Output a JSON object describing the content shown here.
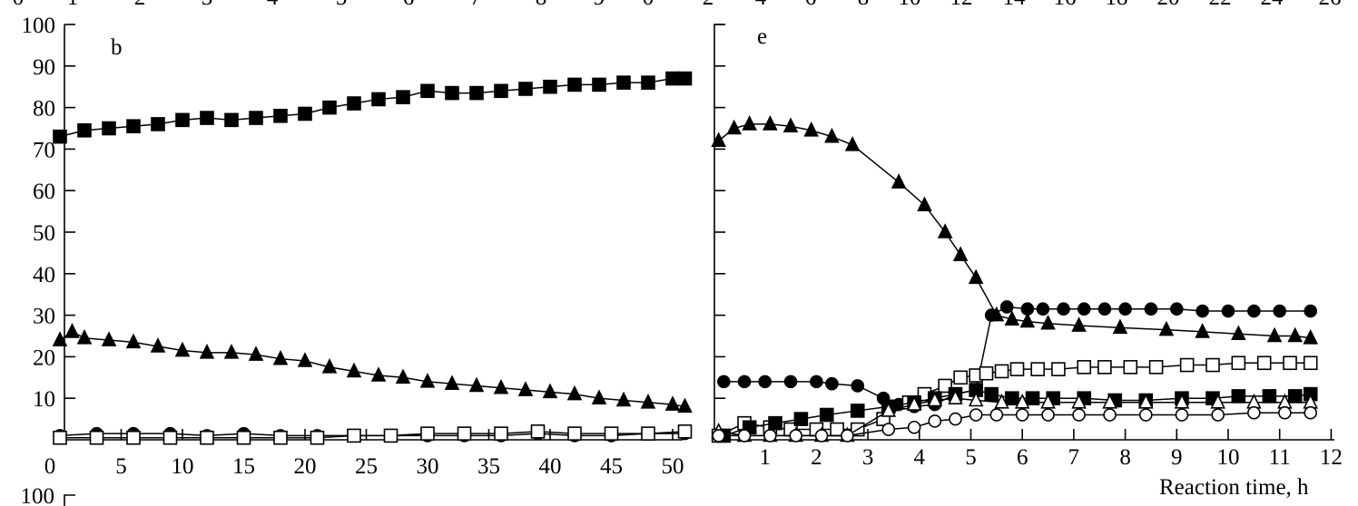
{
  "top_strip_ticks": [
    "0",
    "1",
    "2",
    "3",
    "4",
    "5",
    "6",
    "7",
    "8",
    "9",
    "0",
    "2",
    "4",
    "6",
    "8",
    "10",
    "12",
    "14",
    "16",
    "18",
    "20",
    "22",
    "24",
    "26"
  ],
  "next_panel_tick": "100",
  "chart_data": [
    {
      "panel": "b",
      "type": "line",
      "xlim": [
        0,
        53
      ],
      "ylim": [
        0,
        100
      ],
      "x_ticks": [
        0,
        5,
        10,
        15,
        20,
        25,
        30,
        35,
        40,
        45,
        50
      ],
      "y_ticks": [
        10,
        20,
        30,
        40,
        50,
        60,
        70,
        80,
        90,
        100
      ],
      "series": [
        {
          "marker": "filled-square",
          "x": [
            0,
            2,
            4,
            6,
            8,
            10,
            12,
            14,
            16,
            18,
            20,
            22,
            24,
            26,
            28,
            30,
            32,
            34,
            36,
            38,
            40,
            42,
            44,
            46,
            48,
            50,
            51
          ],
          "y": [
            73,
            74.5,
            75,
            75.5,
            76,
            77,
            77.5,
            77,
            77.5,
            78,
            78.5,
            80,
            81,
            82,
            82.5,
            84,
            83.5,
            83.5,
            84,
            84.5,
            85,
            85.5,
            85.5,
            86,
            86,
            87,
            87
          ]
        },
        {
          "marker": "filled-triangle",
          "x": [
            0,
            1,
            2,
            4,
            6,
            8,
            10,
            12,
            14,
            16,
            18,
            20,
            22,
            24,
            26,
            28,
            30,
            32,
            34,
            36,
            38,
            40,
            42,
            44,
            46,
            48,
            50,
            51
          ],
          "y": [
            24,
            26,
            24.5,
            24,
            23.5,
            22.5,
            21.5,
            21,
            21,
            20.5,
            19.5,
            19,
            17.5,
            16.5,
            15.5,
            15,
            14,
            13.5,
            13,
            12.5,
            12,
            11.5,
            11,
            10,
            9.5,
            9,
            8.5,
            8
          ]
        },
        {
          "marker": "filled-circle",
          "x": [
            0,
            3,
            6,
            9,
            12,
            15,
            18,
            21,
            24,
            27,
            30,
            33,
            36,
            39,
            42,
            45,
            48,
            51
          ],
          "y": [
            1,
            1.5,
            1.5,
            1.5,
            1,
            1.5,
            1,
            1,
            1,
            1,
            1,
            1,
            1,
            1.5,
            1,
            1,
            1.5,
            1.5
          ]
        },
        {
          "marker": "open-square",
          "x": [
            0,
            3,
            6,
            9,
            12,
            15,
            18,
            21,
            24,
            27,
            30,
            33,
            36,
            39,
            42,
            45,
            48,
            51
          ],
          "y": [
            0.5,
            0.5,
            0.5,
            0.5,
            0.5,
            0.5,
            0.5,
            0.5,
            1,
            1,
            1.5,
            1.5,
            1.5,
            2,
            1.5,
            1.5,
            1.5,
            2
          ]
        }
      ]
    },
    {
      "panel": "e",
      "type": "line",
      "xlabel": "Reaction time, h",
      "xlim": [
        0,
        12
      ],
      "ylim": [
        0,
        100
      ],
      "x_ticks": [
        1,
        2,
        3,
        4,
        5,
        6,
        7,
        8,
        9,
        10,
        11,
        12
      ],
      "y_ticks": [
        10,
        20,
        30,
        40,
        50,
        60,
        70,
        80,
        90,
        100
      ],
      "series": [
        {
          "marker": "filled-triangle",
          "x": [
            0.1,
            0.4,
            0.7,
            1.1,
            1.5,
            1.9,
            2.3,
            2.7,
            3.6,
            4.1,
            4.5,
            4.8,
            5.1,
            5.5,
            5.8,
            6.1,
            6.5,
            7.1,
            7.9,
            8.8,
            9.5,
            10.2,
            10.9,
            11.3,
            11.6
          ],
          "y": [
            72,
            75,
            76,
            76,
            75.5,
            74.5,
            73,
            71,
            62,
            56.5,
            50,
            44.5,
            39,
            30,
            29,
            28.5,
            28,
            27.5,
            27,
            26.5,
            26,
            25.5,
            25,
            25,
            24.5
          ]
        },
        {
          "marker": "filled-circle",
          "x": [
            0.2,
            0.6,
            1.0,
            1.5,
            2.0,
            2.3,
            2.8,
            3.3,
            3.6,
            3.9,
            4.3,
            4.7,
            5.1,
            5.4,
            5.7,
            6.1,
            6.4,
            6.8,
            7.2,
            7.6,
            8.0,
            8.5,
            9.0,
            9.5,
            10.0,
            10.5,
            11.0,
            11.6
          ],
          "y": [
            14,
            14,
            14,
            14,
            14,
            13.5,
            13,
            10,
            8.5,
            8,
            8.5,
            11,
            12,
            30,
            32,
            31.5,
            31.5,
            31.5,
            31.5,
            31.5,
            31.5,
            31.5,
            31.5,
            31,
            31,
            31,
            31,
            31
          ]
        },
        {
          "marker": "open-square",
          "x": [
            0.1,
            0.6,
            1.1,
            1.5,
            2.0,
            2.4,
            2.8,
            3.3,
            3.8,
            4.1,
            4.5,
            4.8,
            5.1,
            5.3,
            5.6,
            5.9,
            6.3,
            6.7,
            7.2,
            7.6,
            8.1,
            8.6,
            9.2,
            9.7,
            10.2,
            10.7,
            11.2,
            11.6
          ],
          "y": [
            1,
            4,
            3,
            2.5,
            2.5,
            2.5,
            2.5,
            5,
            9,
            11,
            13,
            15,
            15.5,
            16,
            16.5,
            17,
            17,
            17,
            17.5,
            17.5,
            17.5,
            17.5,
            18,
            18,
            18.5,
            18.5,
            18.5,
            18.5
          ]
        },
        {
          "marker": "filled-square",
          "x": [
            0.2,
            0.7,
            1.2,
            1.7,
            2.2,
            2.8,
            3.4,
            3.9,
            4.3,
            4.7,
            5.1,
            5.4,
            5.8,
            6.2,
            6.6,
            7.2,
            7.8,
            8.4,
            9.1,
            9.7,
            10.2,
            10.8,
            11.3,
            11.6
          ],
          "y": [
            1,
            3,
            4,
            5,
            6,
            7,
            8,
            9,
            10,
            11,
            12,
            11,
            10,
            10,
            10,
            10,
            9.5,
            9.5,
            10,
            10,
            10.5,
            10.5,
            10.5,
            11
          ]
        },
        {
          "marker": "open-triangle",
          "x": [
            0.1,
            0.6,
            1.1,
            1.6,
            2.1,
            2.6,
            3.4,
            3.9,
            4.3,
            4.7,
            5.1,
            5.6,
            6.0,
            6.5,
            7.1,
            7.7,
            8.4,
            9.1,
            9.8,
            10.5,
            11.1,
            11.6
          ],
          "y": [
            2,
            1,
            1,
            1,
            1,
            1,
            7,
            8.5,
            9.5,
            10,
            9.5,
            9,
            9,
            9,
            9,
            9,
            9,
            9,
            9,
            9,
            9,
            9
          ]
        },
        {
          "marker": "open-circle",
          "x": [
            0.1,
            0.6,
            1.1,
            1.6,
            2.1,
            2.6,
            3.4,
            3.9,
            4.3,
            4.7,
            5.1,
            5.5,
            6.0,
            6.5,
            7.1,
            7.7,
            8.4,
            9.1,
            9.8,
            10.5,
            11.1,
            11.6
          ],
          "y": [
            1,
            1,
            1,
            1,
            1,
            1,
            2.5,
            3,
            4.5,
            5,
            6,
            6,
            6,
            6,
            6,
            6,
            6,
            6,
            6,
            6.5,
            6.5,
            6.5
          ]
        }
      ]
    }
  ]
}
